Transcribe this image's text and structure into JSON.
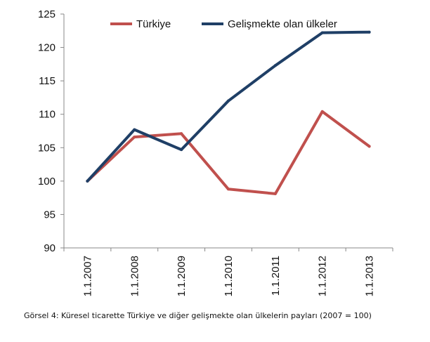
{
  "chart_data": {
    "type": "line",
    "x": [
      "1.1.2007",
      "1.1.2008",
      "1.1.2009",
      "1.1.2010",
      "1.1.2011",
      "1.1.2012",
      "1.1.2013"
    ],
    "series": [
      {
        "name": "Türkiye",
        "values": [
          100,
          106.6,
          107.1,
          98.8,
          98.1,
          110.4,
          105.2
        ],
        "color": "#c0504d"
      },
      {
        "name": "Gelişmekte olan ülkeler",
        "values": [
          100,
          107.7,
          104.7,
          112.0,
          117.3,
          122.2,
          122.3
        ],
        "color": "#1f3f66"
      }
    ],
    "yticks": [
      "90",
      "95",
      "100",
      "105",
      "110",
      "115",
      "120",
      "125"
    ],
    "ylim": [
      90,
      125
    ],
    "grid": false,
    "legend": "top"
  },
  "caption": "Görsel 4: Küresel ticarette Türkiye ve diğer gelişmekte olan ülkelerin payları (2007 = 100)"
}
